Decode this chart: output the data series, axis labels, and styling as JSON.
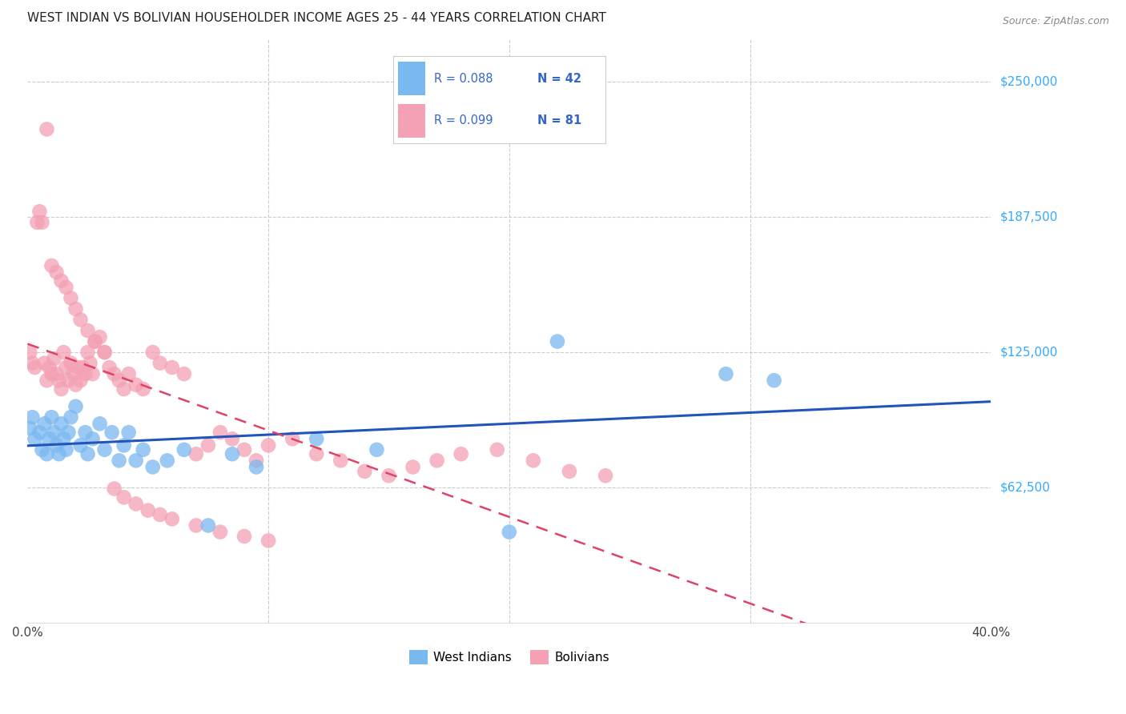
{
  "title": "WEST INDIAN VS BOLIVIAN HOUSEHOLDER INCOME AGES 25 - 44 YEARS CORRELATION CHART",
  "source": "Source: ZipAtlas.com",
  "xlabel_ticks": [
    "0.0%",
    "",
    "",
    "",
    "40.0%"
  ],
  "xlabel_tick_vals": [
    0.0,
    0.1,
    0.2,
    0.3,
    0.4
  ],
  "ylabel_ticks": [
    "$62,500",
    "$125,000",
    "$187,500",
    "$250,000"
  ],
  "ylabel_tick_vals": [
    62500,
    125000,
    187500,
    250000
  ],
  "xmin": 0.0,
  "xmax": 0.4,
  "ymin": 0,
  "ymax": 270000,
  "title_color": "#222222",
  "source_color": "#888888",
  "legend_r_color": "#3366cc",
  "west_indian_color": "#7ab8f0",
  "bolivian_color": "#f4a0b5",
  "west_indian_line_color": "#2255bb",
  "bolivian_line_color": "#dd4466",
  "west_indian_x": [
    0.001,
    0.002,
    0.003,
    0.005,
    0.006,
    0.007,
    0.008,
    0.009,
    0.01,
    0.011,
    0.012,
    0.013,
    0.014,
    0.015,
    0.016,
    0.017,
    0.018,
    0.02,
    0.022,
    0.024,
    0.025,
    0.027,
    0.03,
    0.032,
    0.035,
    0.038,
    0.04,
    0.042,
    0.045,
    0.048,
    0.052,
    0.058,
    0.065,
    0.075,
    0.085,
    0.095,
    0.12,
    0.145,
    0.2,
    0.22,
    0.29,
    0.31
  ],
  "west_indian_y": [
    90000,
    95000,
    85000,
    88000,
    80000,
    92000,
    78000,
    85000,
    95000,
    88000,
    82000,
    78000,
    92000,
    85000,
    80000,
    88000,
    95000,
    100000,
    82000,
    88000,
    78000,
    85000,
    92000,
    80000,
    88000,
    75000,
    82000,
    88000,
    75000,
    80000,
    72000,
    75000,
    80000,
    45000,
    78000,
    72000,
    85000,
    80000,
    42000,
    130000,
    115000,
    112000
  ],
  "bolivian_x": [
    0.001,
    0.002,
    0.003,
    0.004,
    0.005,
    0.006,
    0.007,
    0.008,
    0.009,
    0.01,
    0.011,
    0.012,
    0.013,
    0.014,
    0.015,
    0.016,
    0.017,
    0.018,
    0.019,
    0.02,
    0.021,
    0.022,
    0.023,
    0.024,
    0.025,
    0.026,
    0.027,
    0.028,
    0.03,
    0.032,
    0.034,
    0.036,
    0.038,
    0.04,
    0.042,
    0.045,
    0.048,
    0.052,
    0.055,
    0.06,
    0.065,
    0.07,
    0.075,
    0.08,
    0.085,
    0.09,
    0.095,
    0.1,
    0.11,
    0.12,
    0.13,
    0.14,
    0.15,
    0.16,
    0.17,
    0.18,
    0.195,
    0.21,
    0.225,
    0.24,
    0.008,
    0.01,
    0.012,
    0.014,
    0.016,
    0.018,
    0.02,
    0.022,
    0.025,
    0.028,
    0.032,
    0.036,
    0.04,
    0.045,
    0.05,
    0.055,
    0.06,
    0.07,
    0.08,
    0.09,
    0.1
  ],
  "bolivian_y": [
    125000,
    120000,
    118000,
    185000,
    190000,
    185000,
    120000,
    112000,
    118000,
    115000,
    122000,
    115000,
    112000,
    108000,
    125000,
    118000,
    112000,
    120000,
    115000,
    110000,
    118000,
    112000,
    118000,
    115000,
    125000,
    120000,
    115000,
    130000,
    132000,
    125000,
    118000,
    115000,
    112000,
    108000,
    115000,
    110000,
    108000,
    125000,
    120000,
    118000,
    115000,
    78000,
    82000,
    88000,
    85000,
    80000,
    75000,
    82000,
    85000,
    78000,
    75000,
    70000,
    68000,
    72000,
    75000,
    78000,
    80000,
    75000,
    70000,
    68000,
    228000,
    165000,
    162000,
    158000,
    155000,
    150000,
    145000,
    140000,
    135000,
    130000,
    125000,
    62000,
    58000,
    55000,
    52000,
    50000,
    48000,
    45000,
    42000,
    40000,
    38000
  ]
}
